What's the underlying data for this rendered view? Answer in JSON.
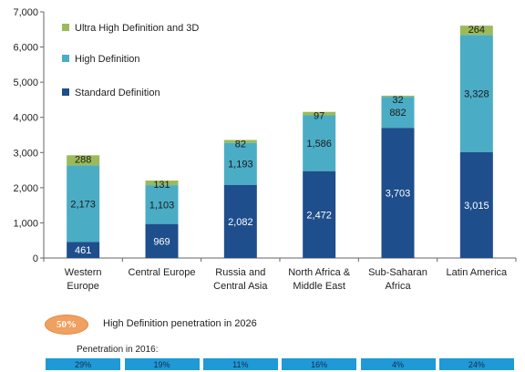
{
  "chart_data": {
    "type": "bar",
    "stacked": true,
    "title": "",
    "xlabel": "",
    "ylabel": "",
    "categories": [
      "Western Europe",
      "Central Europe",
      "Russia and Central Asia",
      "North Africa & Middle East",
      "Sub-Saharan Africa",
      "Latin America"
    ],
    "category_label_lines": [
      [
        "Western",
        "Europe"
      ],
      [
        "Central Europe"
      ],
      [
        "Russia and",
        "Central Asia"
      ],
      [
        "North Africa &",
        "Middle East"
      ],
      [
        "Sub-Saharan",
        "Africa"
      ],
      [
        "Latin America"
      ]
    ],
    "series": [
      {
        "name": "Standard Definition",
        "values": [
          461,
          969,
          2082,
          2472,
          3703,
          3015
        ],
        "labels": [
          "461",
          "969",
          "2,082",
          "2,472",
          "3,703",
          "3,015"
        ],
        "color": "#1f4e8c"
      },
      {
        "name": "High Definition",
        "values": [
          2173,
          1103,
          1193,
          1586,
          882,
          3328
        ],
        "labels": [
          "2,173",
          "1,103",
          "1,193",
          "1,586",
          "882",
          "3,328"
        ],
        "color": "#4bacc6"
      },
      {
        "name": "Ultra High Definition and 3D",
        "values": [
          288,
          131,
          82,
          97,
          32,
          264
        ],
        "labels": [
          "288",
          "131",
          "82",
          "97",
          "32",
          "264"
        ],
        "color": "#9bbb59"
      }
    ],
    "ylim": [
      0,
      7000
    ],
    "yticks": [
      0,
      1000,
      2000,
      3000,
      4000,
      5000,
      6000,
      7000
    ],
    "ytick_labels": [
      "0",
      "1,000",
      "2,000",
      "3,000",
      "4,000",
      "5,000",
      "6,000",
      "7,000"
    ],
    "grid": false,
    "legend_position": "top-left"
  },
  "badge": {
    "value": "50%",
    "caption": "High Definition penetration in 2026",
    "color": "#f0a060"
  },
  "penetration": {
    "title": "Penetration in 2016:",
    "values": [
      "29%",
      "19%",
      "11%",
      "16%",
      "4%",
      "24%"
    ],
    "color": "#1e9ad6"
  }
}
